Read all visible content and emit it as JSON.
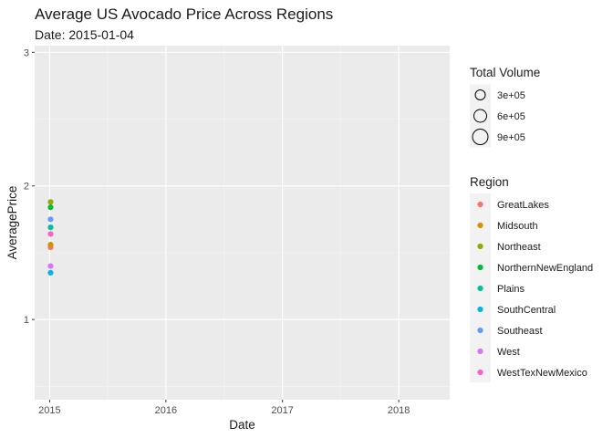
{
  "chart_data": {
    "type": "scatter",
    "title": "Average US Avocado Price Across Regions",
    "subtitle": "Date: 2015-01-04",
    "xlabel": "Date",
    "ylabel": "AveragePrice",
    "x_ticks": [
      "2015",
      "2016",
      "2017",
      "2018"
    ],
    "y_ticks": [
      1,
      2,
      3
    ],
    "xlim": [
      "2014-11-15",
      "2018-06-10"
    ],
    "ylim": [
      0.4,
      3.05
    ],
    "grid": true,
    "legend_position": "right",
    "background_color": "#ebebeb",
    "size_legend": {
      "title": "Total Volume",
      "entries": [
        {
          "label": "3e+05",
          "value": 300000
        },
        {
          "label": "6e+05",
          "value": 600000
        },
        {
          "label": "9e+05",
          "value": 900000
        }
      ]
    },
    "color_legend": {
      "title": "Region",
      "entries": [
        {
          "label": "GreatLakes",
          "color": "#F8766D"
        },
        {
          "label": "Midsouth",
          "color": "#D39200"
        },
        {
          "label": "Northeast",
          "color": "#93AA00"
        },
        {
          "label": "NorthernNewEngland",
          "color": "#00BA38"
        },
        {
          "label": "Plains",
          "color": "#00C19F"
        },
        {
          "label": "SouthCentral",
          "color": "#00B9E3"
        },
        {
          "label": "Southeast",
          "color": "#619CFF"
        },
        {
          "label": "West",
          "color": "#DB72FB"
        },
        {
          "label": "WestTexNewMexico",
          "color": "#FF61C3"
        }
      ]
    },
    "points": [
      {
        "region": "GreatLakes",
        "x": "2015-01-04",
        "y": 1.54
      },
      {
        "region": "Midsouth",
        "x": "2015-01-04",
        "y": 1.56
      },
      {
        "region": "Northeast",
        "x": "2015-01-04",
        "y": 1.88
      },
      {
        "region": "NorthernNewEngland",
        "x": "2015-01-04",
        "y": 1.84
      },
      {
        "region": "Plains",
        "x": "2015-01-04",
        "y": 1.69
      },
      {
        "region": "SouthCentral",
        "x": "2015-01-04",
        "y": 1.35
      },
      {
        "region": "Southeast",
        "x": "2015-01-04",
        "y": 1.75
      },
      {
        "region": "West",
        "x": "2015-01-04",
        "y": 1.4
      },
      {
        "region": "WestTexNewMexico",
        "x": "2015-01-04",
        "y": 1.64
      }
    ]
  }
}
